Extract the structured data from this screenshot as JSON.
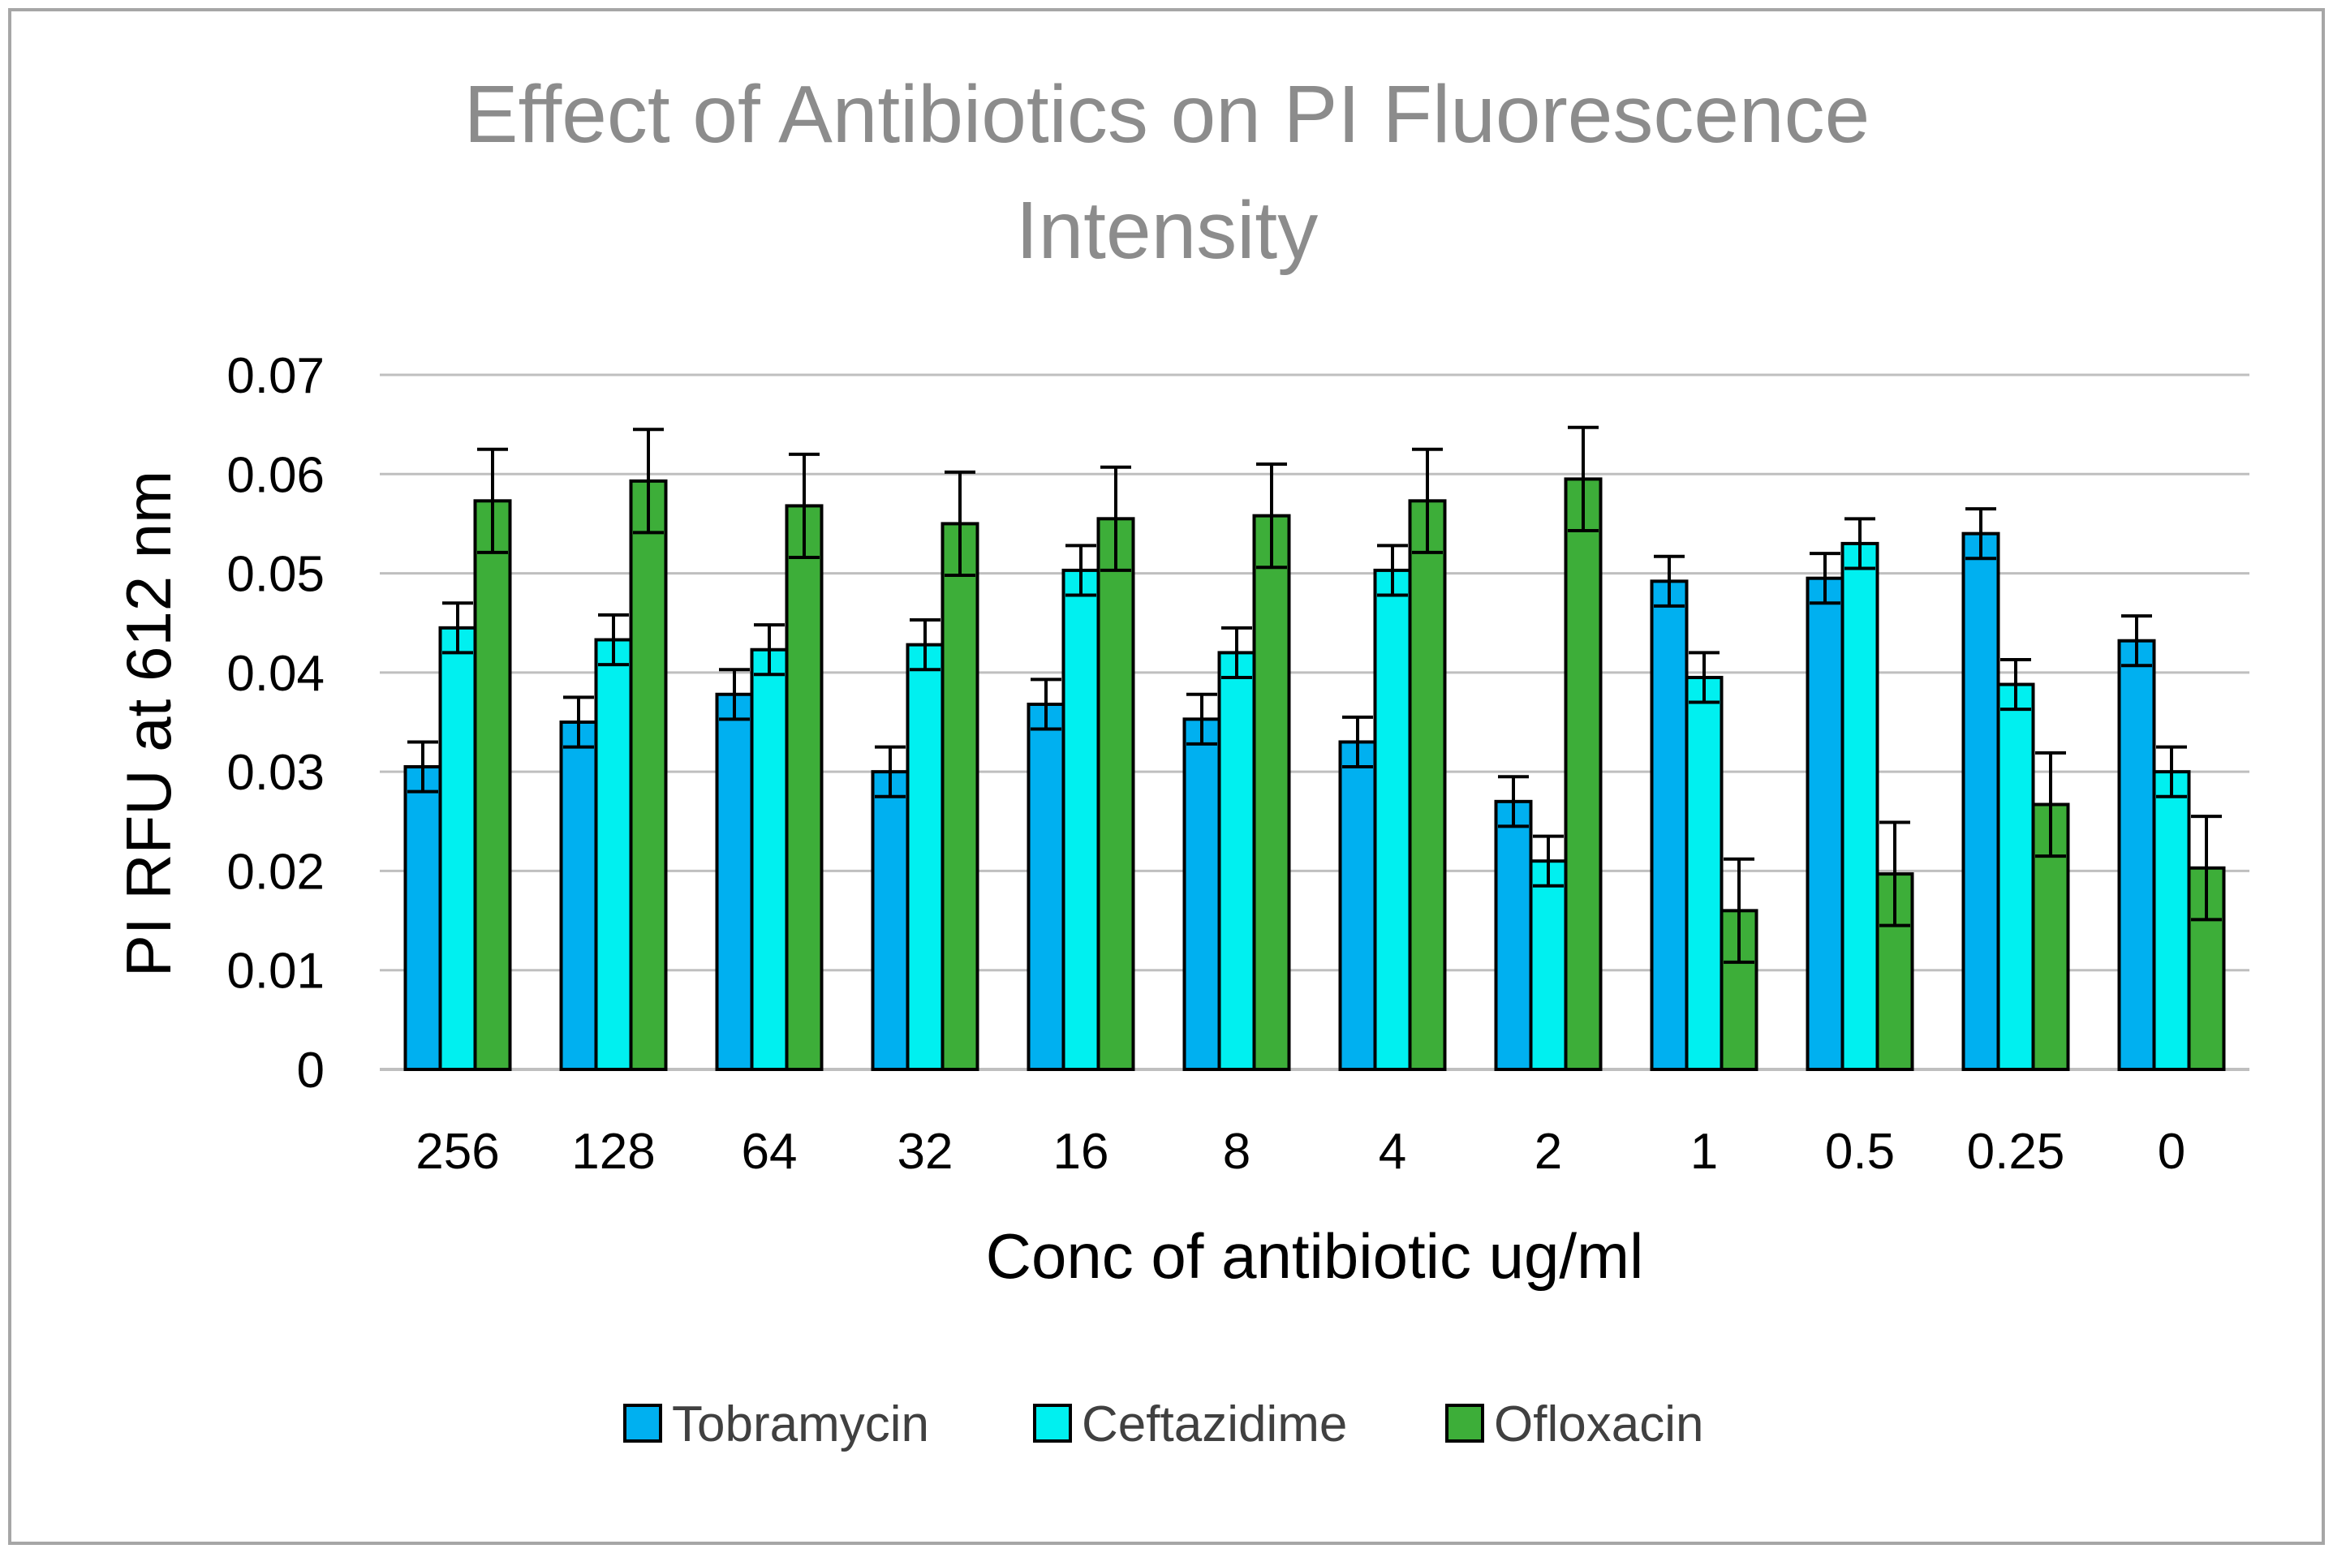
{
  "chart_data": {
    "type": "bar",
    "title": "Effect of Antibiotics on PI Fluorescence Intensity",
    "title_lines": [
      "Effect of Antibiotics on PI Fluorescence",
      "Intensity"
    ],
    "xlabel": "Conc of antibiotic ug/ml",
    "ylabel": "PI RFU at 612 nm",
    "categories": [
      "256",
      "128",
      "64",
      "32",
      "16",
      "8",
      "4",
      "2",
      "1",
      "0.5",
      "0.25",
      "0"
    ],
    "ylim": [
      0,
      0.07
    ],
    "yticks": [
      0,
      0.01,
      0.02,
      0.03,
      0.04,
      0.05,
      0.06,
      0.07
    ],
    "ytick_labels": [
      "0",
      "0.01",
      "0.02",
      "0.03",
      "0.04",
      "0.05",
      "0.06",
      "0.07"
    ],
    "grid": true,
    "legend_position": "bottom",
    "series": [
      {
        "name": "Tobramycin",
        "color": "#00B0F0",
        "values": [
          0.0305,
          0.035,
          0.0378,
          0.03,
          0.0368,
          0.0353,
          0.033,
          0.027,
          0.0492,
          0.0495,
          0.054,
          0.0432
        ],
        "errors": [
          0.0025,
          0.0025,
          0.0025,
          0.0025,
          0.0025,
          0.0025,
          0.0025,
          0.0025,
          0.0025,
          0.0025,
          0.0025,
          0.0025
        ]
      },
      {
        "name": "Ceftazidime",
        "color": "#00F0F0",
        "values": [
          0.0445,
          0.0433,
          0.0423,
          0.0428,
          0.0503,
          0.042,
          0.0503,
          0.021,
          0.0395,
          0.053,
          0.0388,
          0.03
        ],
        "errors": [
          0.0025,
          0.0025,
          0.0025,
          0.0025,
          0.0025,
          0.0025,
          0.0025,
          0.0025,
          0.0025,
          0.0025,
          0.0025,
          0.0025
        ]
      },
      {
        "name": "Ofloxacin",
        "color": "#3DAE39",
        "values": [
          0.0573,
          0.0593,
          0.0568,
          0.055,
          0.0555,
          0.0558,
          0.0573,
          0.0595,
          0.016,
          0.0197,
          0.0267,
          0.0203
        ],
        "errors": [
          0.0052,
          0.0052,
          0.0052,
          0.0052,
          0.0052,
          0.0052,
          0.0052,
          0.0052,
          0.0052,
          0.0052,
          0.0052,
          0.0052
        ]
      }
    ]
  }
}
